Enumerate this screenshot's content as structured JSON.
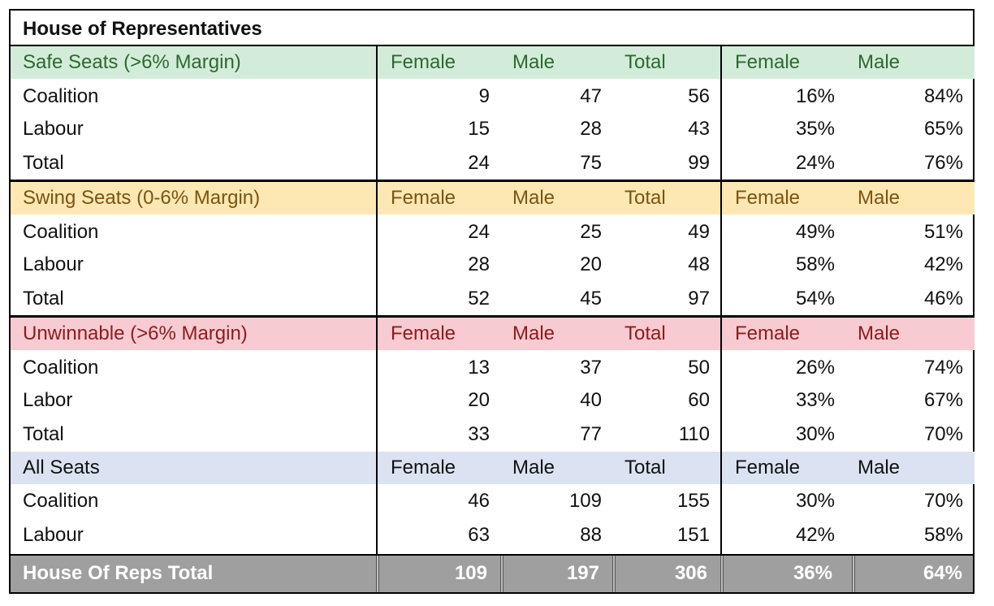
{
  "table": {
    "title": "House of Representatives",
    "column_headers": [
      "Female",
      "Male",
      "Total",
      "Female",
      "Male"
    ],
    "sections": [
      {
        "label": "Safe Seats (>6% Margin)",
        "rows": [
          {
            "party": "Coalition",
            "female": "9",
            "male": "47",
            "total": "56",
            "female_pct": "16%",
            "male_pct": "84%"
          },
          {
            "party": "Labour",
            "female": "15",
            "male": "28",
            "total": "43",
            "female_pct": "35%",
            "male_pct": "65%"
          },
          {
            "party": "Total",
            "female": "24",
            "male": "75",
            "total": "99",
            "female_pct": "24%",
            "male_pct": "76%"
          }
        ]
      },
      {
        "label": "Swing Seats (0-6% Margin)",
        "rows": [
          {
            "party": "Coalition",
            "female": "24",
            "male": "25",
            "total": "49",
            "female_pct": "49%",
            "male_pct": "51%"
          },
          {
            "party": "Labour",
            "female": "28",
            "male": "20",
            "total": "48",
            "female_pct": "58%",
            "male_pct": "42%"
          },
          {
            "party": "Total",
            "female": "52",
            "male": "45",
            "total": "97",
            "female_pct": "54%",
            "male_pct": "46%"
          }
        ]
      },
      {
        "label": "Unwinnable (>6% Margin)",
        "rows": [
          {
            "party": "Coalition",
            "female": "13",
            "male": "37",
            "total": "50",
            "female_pct": "26%",
            "male_pct": "74%"
          },
          {
            "party": "Labor",
            "female": "20",
            "male": "40",
            "total": "60",
            "female_pct": "33%",
            "male_pct": "67%"
          },
          {
            "party": "Total",
            "female": "33",
            "male": "77",
            "total": "110",
            "female_pct": "30%",
            "male_pct": "70%"
          }
        ]
      },
      {
        "label": "All Seats",
        "rows": [
          {
            "party": "Coalition",
            "female": "46",
            "male": "109",
            "total": "155",
            "female_pct": "30%",
            "male_pct": "70%"
          },
          {
            "party": "Labour",
            "female": "63",
            "male": "88",
            "total": "151",
            "female_pct": "42%",
            "male_pct": "58%"
          }
        ]
      }
    ],
    "grand_total": {
      "label": "House Of Reps Total",
      "female": "109",
      "male": "197",
      "total": "306",
      "female_pct": "36%",
      "male_pct": "64%"
    }
  },
  "colors": {
    "safe_header_bg": "#d3ecd9",
    "safe_header_text": "#2b6a2e",
    "swing_header_bg": "#fde8b3",
    "swing_header_text": "#7b5411",
    "unwinnable_header_bg": "#f7cbd1",
    "unwinnable_header_text": "#8c1c1c",
    "all_header_bg": "#dbe3f2",
    "total_row_bg": "#9f9f9f"
  }
}
